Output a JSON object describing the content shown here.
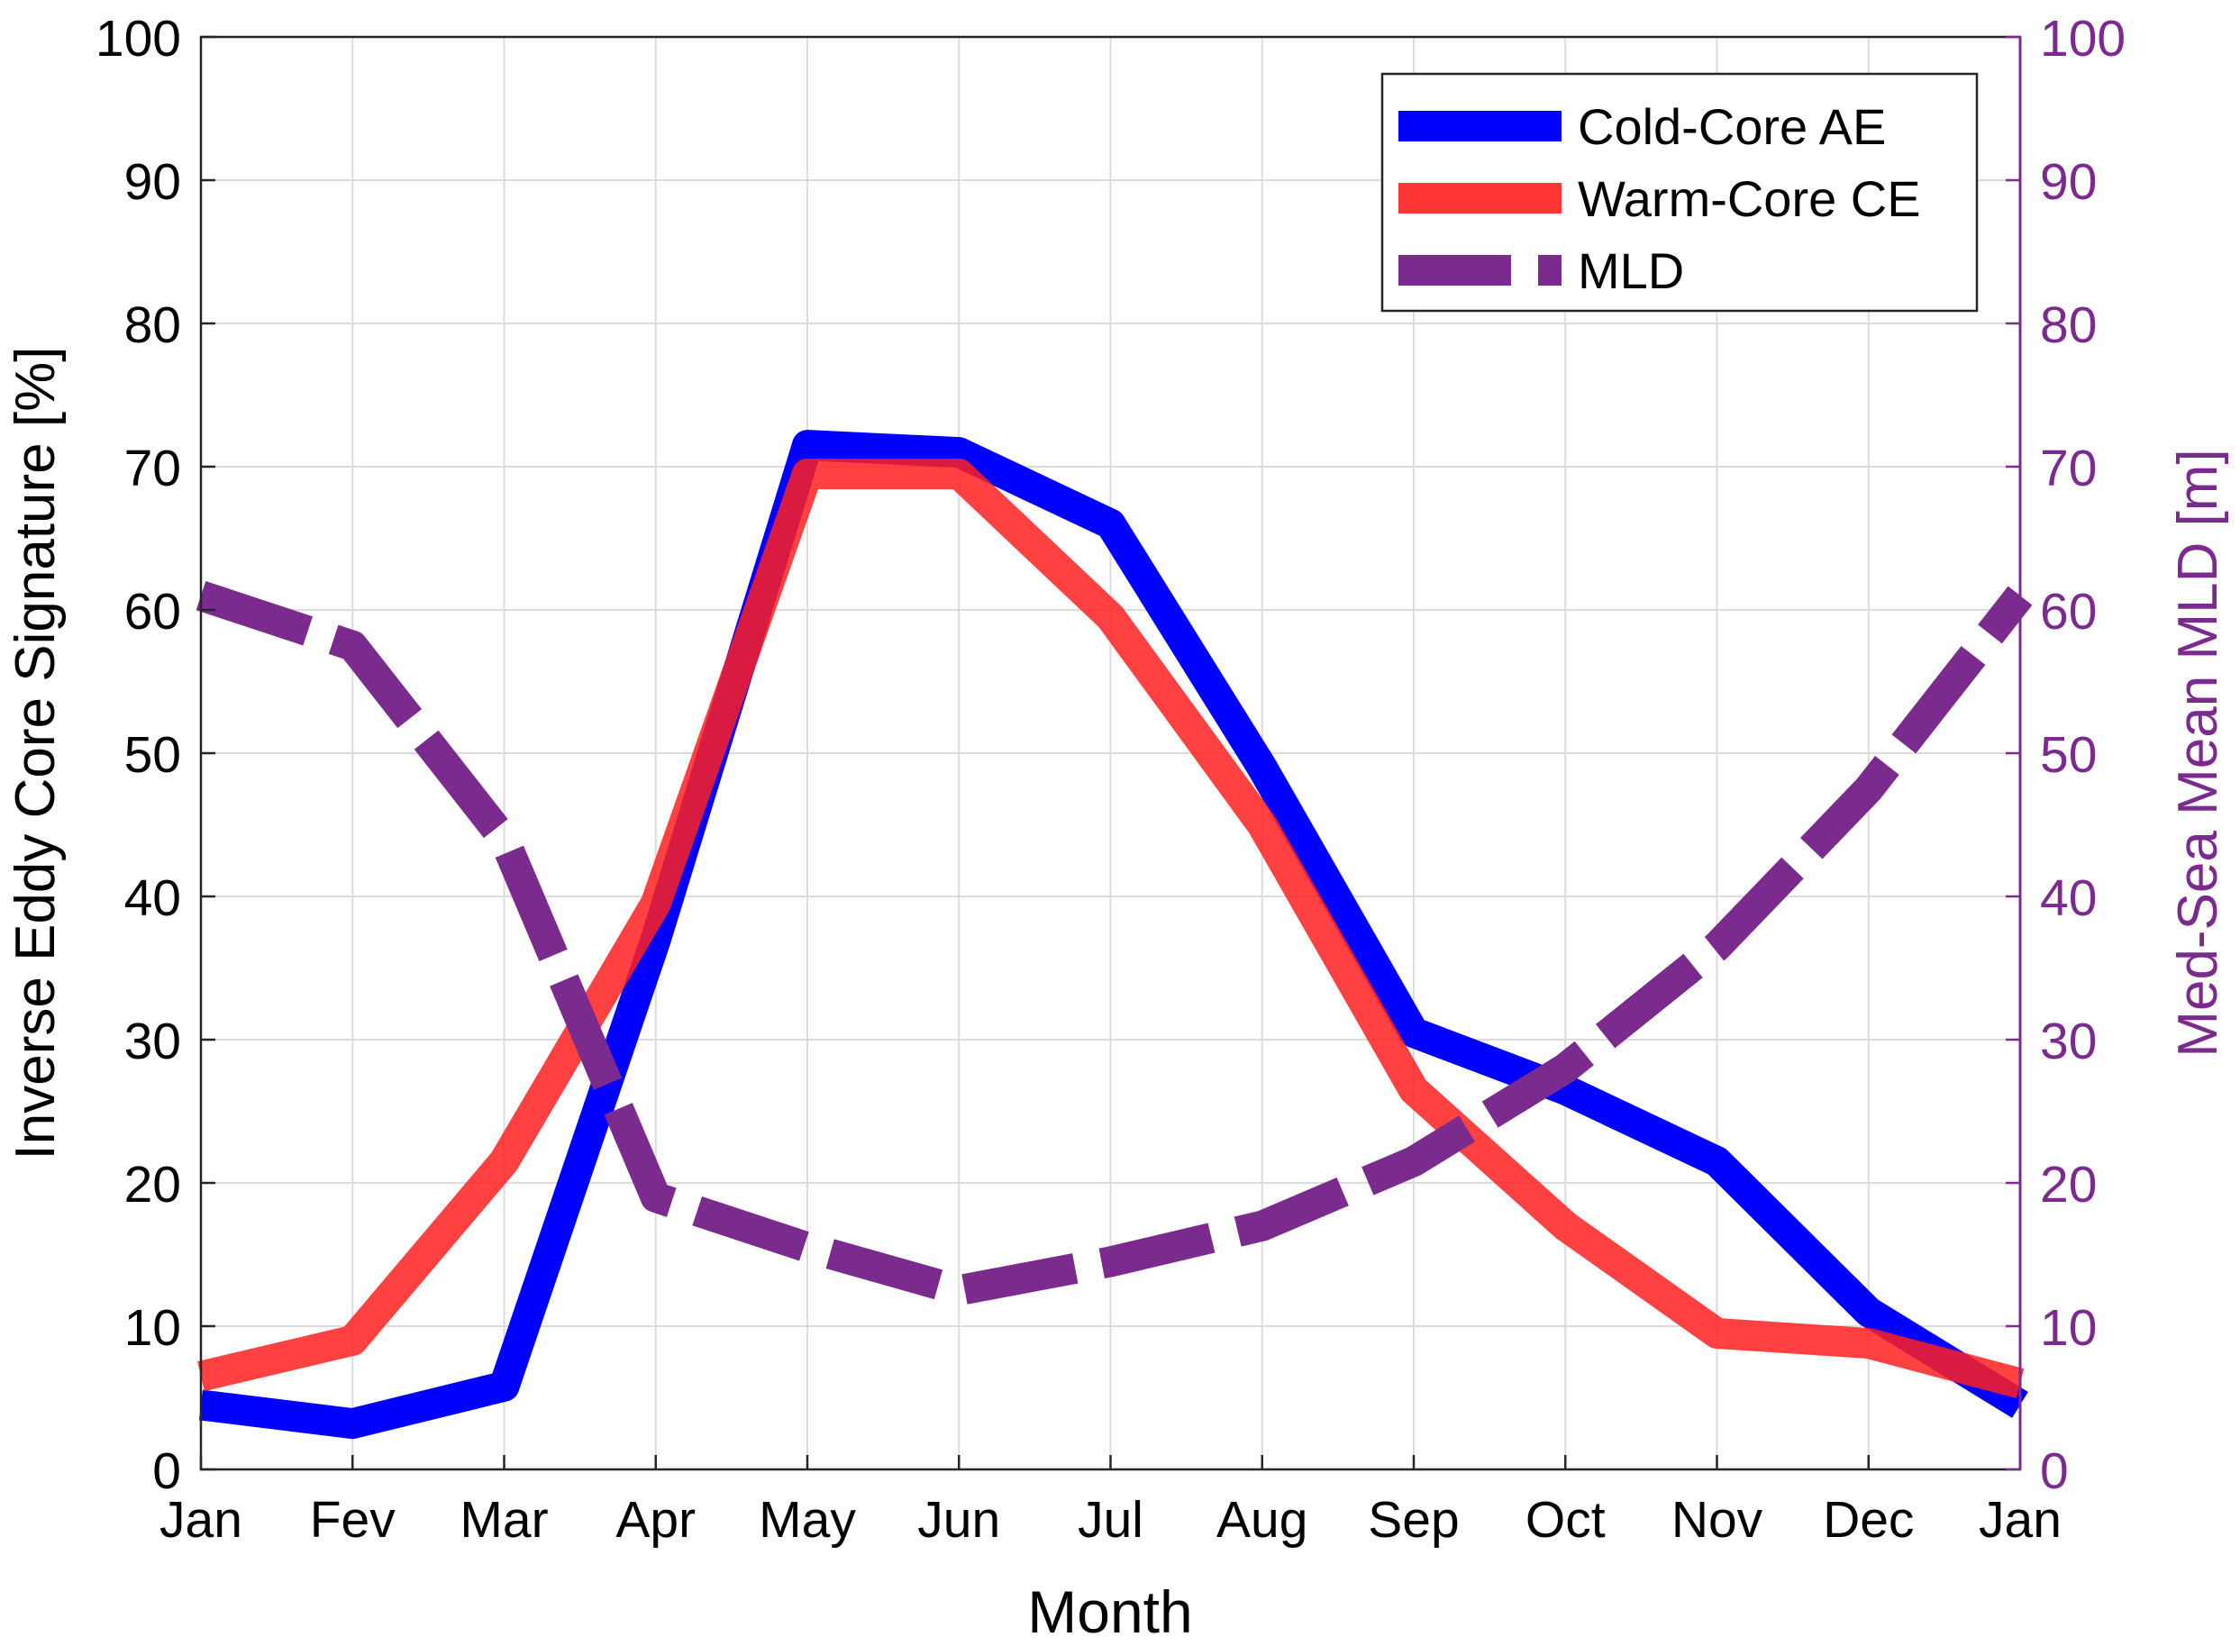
{
  "chart_data": {
    "type": "line",
    "categories": [
      "Jan",
      "Fev",
      "Mar",
      "Apr",
      "May",
      "Jun",
      "Jul",
      "Aug",
      "Sep",
      "Oct",
      "Nov",
      "Dec",
      "Jan"
    ],
    "xlabel": "Month",
    "ylabel_left": "Inverse Eddy Core Signature [%]",
    "ylabel_right": "Med-Sea Mean MLD [m]",
    "ylim_left": [
      0,
      100
    ],
    "ylim_right": [
      0,
      100
    ],
    "yticks_left": [
      0,
      10,
      20,
      30,
      40,
      50,
      60,
      70,
      80,
      90,
      100
    ],
    "yticks_right": [
      0,
      10,
      20,
      30,
      40,
      50,
      60,
      70,
      80,
      90,
      100
    ],
    "grid": true,
    "legend_position": "top-right",
    "series": [
      {
        "name": "Cold-Core AE",
        "axis": "left",
        "color": "#0000ff",
        "style": "solid",
        "values": [
          4.5,
          3.2,
          5.8,
          37,
          71.5,
          71,
          66,
          49,
          30.5,
          26.5,
          21.5,
          11,
          4.5
        ]
      },
      {
        "name": "Warm-Core CE",
        "axis": "left",
        "color": "#ff2020",
        "style": "solid",
        "values": [
          6.5,
          9,
          21.5,
          39.5,
          69.5,
          69.5,
          59.5,
          45,
          26.5,
          17,
          9.5,
          8.8,
          6
        ]
      },
      {
        "name": "MLD",
        "axis": "right",
        "color": "#7b2a8e",
        "style": "dashed",
        "values": [
          61,
          57.5,
          44,
          19,
          15.5,
          12.5,
          14.5,
          17,
          21.5,
          28,
          36.5,
          47.5,
          61
        ]
      }
    ]
  }
}
